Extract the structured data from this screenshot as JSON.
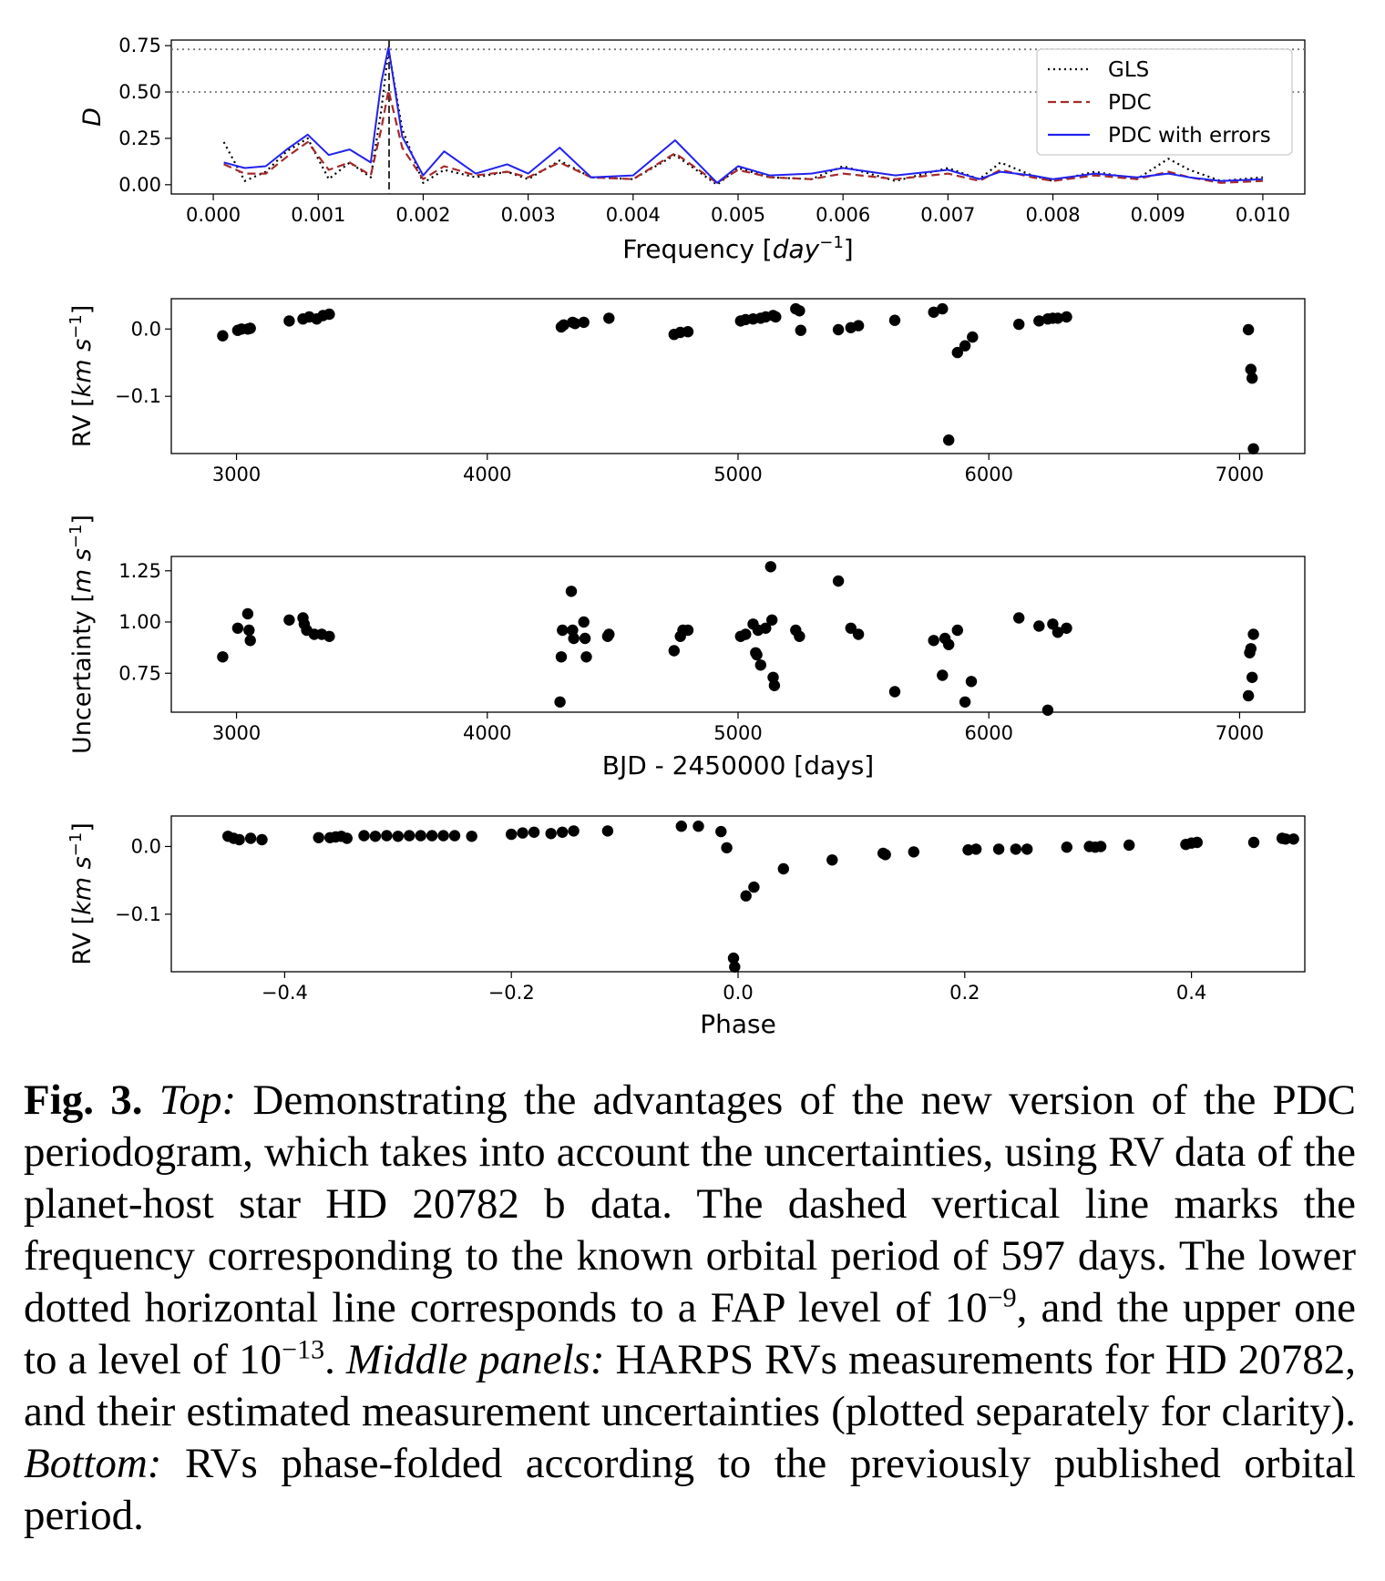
{
  "chart_data": [
    {
      "type": "line",
      "xlabel_pre": "Frequency [",
      "xlabel_var": "day",
      "xlabel_sup": "−1",
      "xlabel_post": "]",
      "ylabel": "D",
      "xlim": [
        -0.0004,
        0.0104
      ],
      "ylim": [
        -0.05,
        0.78
      ],
      "xticks": [
        "0.000",
        "0.001",
        "0.002",
        "0.003",
        "0.004",
        "0.005",
        "0.006",
        "0.007",
        "0.008",
        "0.009",
        "0.010"
      ],
      "xtick_values": [
        0.0,
        0.001,
        0.002,
        0.003,
        0.004,
        0.005,
        0.006,
        0.007,
        0.008,
        0.009,
        0.01
      ],
      "yticks": [
        "0.00",
        "0.25",
        "0.50",
        "0.75"
      ],
      "ytick_values": [
        0.0,
        0.25,
        0.5,
        0.75
      ],
      "hlines": [
        0.5,
        0.73
      ],
      "vline": 0.001675,
      "legend_position": "top-right",
      "colors": {
        "GLS": "#000000",
        "PDC": "#a52a2a",
        "PDC with errors": "#2222ee"
      },
      "series": [
        {
          "name": "GLS",
          "style": "dotted",
          "x": [
            0.0001,
            0.0003,
            0.0005,
            0.0007,
            0.0009,
            0.0011,
            0.0013,
            0.0015,
            0.0016,
            0.00167,
            0.0018,
            0.002,
            0.0022,
            0.0025,
            0.0028,
            0.003,
            0.0033,
            0.0036,
            0.004,
            0.0044,
            0.0048,
            0.005,
            0.0053,
            0.0057,
            0.006,
            0.0065,
            0.007,
            0.0073,
            0.0075,
            0.0078,
            0.008,
            0.0084,
            0.0088,
            0.0091,
            0.0093,
            0.0096,
            0.01
          ],
          "y": [
            0.23,
            0.02,
            0.07,
            0.18,
            0.25,
            0.03,
            0.12,
            0.04,
            0.4,
            0.73,
            0.3,
            0.01,
            0.08,
            0.04,
            0.07,
            0.03,
            0.13,
            0.04,
            0.03,
            0.16,
            0.0,
            0.09,
            0.04,
            0.03,
            0.1,
            0.02,
            0.09,
            0.03,
            0.12,
            0.05,
            0.02,
            0.07,
            0.03,
            0.14,
            0.08,
            0.02,
            0.04
          ]
        },
        {
          "name": "PDC",
          "style": "dashed",
          "x": [
            0.0001,
            0.0003,
            0.0005,
            0.0007,
            0.0009,
            0.0011,
            0.0013,
            0.0015,
            0.0016,
            0.00167,
            0.0018,
            0.002,
            0.0022,
            0.0025,
            0.0028,
            0.003,
            0.0033,
            0.0036,
            0.004,
            0.0044,
            0.0048,
            0.005,
            0.0053,
            0.0057,
            0.006,
            0.0065,
            0.007,
            0.0073,
            0.0075,
            0.0078,
            0.008,
            0.0084,
            0.0088,
            0.0091,
            0.0093,
            0.0096,
            0.01
          ],
          "y": [
            0.11,
            0.06,
            0.06,
            0.15,
            0.23,
            0.08,
            0.12,
            0.05,
            0.3,
            0.51,
            0.2,
            0.03,
            0.1,
            0.05,
            0.07,
            0.04,
            0.12,
            0.04,
            0.03,
            0.17,
            0.01,
            0.08,
            0.04,
            0.03,
            0.06,
            0.03,
            0.06,
            0.02,
            0.08,
            0.04,
            0.02,
            0.05,
            0.03,
            0.07,
            0.04,
            0.01,
            0.02
          ]
        },
        {
          "name": "PDC with errors",
          "style": "solid",
          "x": [
            0.0001,
            0.0003,
            0.0005,
            0.0007,
            0.0009,
            0.0011,
            0.0013,
            0.0015,
            0.0016,
            0.00167,
            0.0018,
            0.002,
            0.0022,
            0.0025,
            0.0028,
            0.003,
            0.0033,
            0.0036,
            0.004,
            0.0044,
            0.0048,
            0.005,
            0.0053,
            0.0057,
            0.006,
            0.0065,
            0.007,
            0.0073,
            0.0075,
            0.0078,
            0.008,
            0.0084,
            0.0088,
            0.0091,
            0.0093,
            0.0096,
            0.01
          ],
          "y": [
            0.12,
            0.09,
            0.1,
            0.19,
            0.27,
            0.16,
            0.19,
            0.12,
            0.55,
            0.74,
            0.26,
            0.05,
            0.18,
            0.06,
            0.11,
            0.06,
            0.2,
            0.04,
            0.05,
            0.24,
            0.01,
            0.1,
            0.05,
            0.06,
            0.09,
            0.05,
            0.08,
            0.03,
            0.07,
            0.05,
            0.03,
            0.06,
            0.04,
            0.06,
            0.04,
            0.02,
            0.03
          ]
        }
      ]
    },
    {
      "type": "scatter",
      "ylabel_pre": "RV [",
      "ylabel_var": "km s",
      "ylabel_sup": "−1",
      "ylabel_post": "]",
      "xlim": [
        2740,
        7260
      ],
      "ylim": [
        -0.185,
        0.045
      ],
      "xticks": [
        "3000",
        "4000",
        "5000",
        "6000",
        "7000"
      ],
      "xtick_values": [
        3000,
        4000,
        5000,
        6000,
        7000
      ],
      "yticks": [
        "0.0",
        "−0.1"
      ],
      "ytick_values": [
        0.0,
        -0.1
      ],
      "x": [
        2945,
        3005,
        3020,
        3045,
        3055,
        3210,
        3265,
        3290,
        3320,
        3345,
        3370,
        4295,
        4305,
        4340,
        4350,
        4385,
        4485,
        4745,
        4770,
        4800,
        5010,
        5030,
        5060,
        5090,
        5110,
        5140,
        5150,
        5230,
        5245,
        5250,
        5400,
        5450,
        5480,
        5625,
        5780,
        5815,
        5840,
        5875,
        5905,
        5935,
        6120,
        6200,
        6235,
        6255,
        6275,
        6310,
        7035,
        7045,
        7050,
        7055
      ],
      "y": [
        -0.01,
        -0.002,
        0.0,
        0.0,
        0.001,
        0.012,
        0.015,
        0.018,
        0.015,
        0.02,
        0.022,
        0.003,
        0.006,
        0.01,
        0.008,
        0.01,
        0.016,
        -0.008,
        -0.005,
        -0.004,
        0.012,
        0.014,
        0.015,
        0.016,
        0.018,
        0.02,
        0.018,
        0.03,
        0.027,
        -0.002,
        -0.001,
        0.002,
        0.005,
        0.013,
        0.025,
        0.03,
        -0.165,
        -0.035,
        -0.025,
        -0.012,
        0.007,
        0.012,
        0.015,
        0.016,
        0.016,
        0.018,
        -0.001,
        -0.06,
        -0.073,
        -0.178
      ]
    },
    {
      "type": "scatter",
      "ylabel_pre": "Uncertainty [",
      "ylabel_var": "m s",
      "ylabel_sup": "−1",
      "ylabel_post": "]",
      "xlabel": "BJD - 2450000 [days]",
      "xlim": [
        2740,
        7260
      ],
      "ylim": [
        0.56,
        1.32
      ],
      "xticks": [
        "3000",
        "4000",
        "5000",
        "6000",
        "7000"
      ],
      "xtick_values": [
        3000,
        4000,
        5000,
        6000,
        7000
      ],
      "yticks": [
        "1.25",
        "1.00",
        "0.75"
      ],
      "ytick_values": [
        1.25,
        1.0,
        0.75
      ],
      "x": [
        2945,
        3005,
        3045,
        3055,
        3050,
        3210,
        3265,
        3270,
        3280,
        3310,
        3340,
        3370,
        4295,
        4290,
        4300,
        4335,
        4340,
        4345,
        4385,
        4390,
        4395,
        4480,
        4485,
        4745,
        4770,
        4780,
        4800,
        5010,
        5030,
        5060,
        5070,
        5075,
        5080,
        5090,
        5110,
        5130,
        5135,
        5140,
        5145,
        5230,
        5245,
        5400,
        5450,
        5480,
        5625,
        5780,
        5815,
        5825,
        5840,
        5875,
        5905,
        5930,
        6120,
        6200,
        6235,
        6255,
        6275,
        6310,
        7035,
        7040,
        7045,
        7050,
        7055
      ],
      "y": [
        0.83,
        0.97,
        1.04,
        0.91,
        0.96,
        1.01,
        1.02,
        0.99,
        0.96,
        0.94,
        0.94,
        0.93,
        0.83,
        0.61,
        0.96,
        1.15,
        0.96,
        0.92,
        1.0,
        0.92,
        0.83,
        0.93,
        0.94,
        0.86,
        0.93,
        0.96,
        0.96,
        0.93,
        0.94,
        0.99,
        0.85,
        0.84,
        0.96,
        0.79,
        0.97,
        1.27,
        1.01,
        0.73,
        0.69,
        0.96,
        0.93,
        1.2,
        0.97,
        0.94,
        0.66,
        0.91,
        0.74,
        0.92,
        0.89,
        0.96,
        0.61,
        0.71,
        1.02,
        0.98,
        0.57,
        0.99,
        0.95,
        0.97,
        0.64,
        0.85,
        0.87,
        0.73,
        0.94
      ]
    },
    {
      "type": "scatter",
      "ylabel_pre": "RV [",
      "ylabel_var": "km s",
      "ylabel_sup": "−1",
      "ylabel_post": "]",
      "xlabel": "Phase",
      "xlim": [
        -0.5,
        0.5
      ],
      "ylim": [
        -0.185,
        0.045
      ],
      "xticks": [
        "−0.4",
        "−0.2",
        "0.0",
        "0.2",
        "0.4"
      ],
      "xtick_values": [
        -0.4,
        -0.2,
        0.0,
        0.2,
        0.4
      ],
      "yticks": [
        "0.0",
        "−0.1"
      ],
      "ytick_values": [
        0.0,
        -0.1
      ],
      "x": [
        -0.45,
        -0.445,
        -0.44,
        -0.43,
        -0.42,
        -0.37,
        -0.36,
        -0.355,
        -0.35,
        -0.345,
        -0.33,
        -0.32,
        -0.31,
        -0.3,
        -0.29,
        -0.28,
        -0.27,
        -0.26,
        -0.25,
        -0.235,
        -0.2,
        -0.19,
        -0.18,
        -0.165,
        -0.155,
        -0.145,
        -0.115,
        -0.05,
        -0.035,
        -0.015,
        -0.01,
        -0.004,
        -0.003,
        0.007,
        0.014,
        0.04,
        0.083,
        0.128,
        0.13,
        0.155,
        0.203,
        0.21,
        0.23,
        0.245,
        0.255,
        0.29,
        0.31,
        0.315,
        0.32,
        0.345,
        0.395,
        0.4,
        0.405,
        0.455,
        0.48,
        0.483,
        0.49
      ],
      "y": [
        0.015,
        0.012,
        0.01,
        0.012,
        0.01,
        0.013,
        0.013,
        0.014,
        0.015,
        0.012,
        0.016,
        0.015,
        0.016,
        0.015,
        0.016,
        0.016,
        0.016,
        0.016,
        0.016,
        0.015,
        0.018,
        0.02,
        0.021,
        0.019,
        0.021,
        0.023,
        0.023,
        0.03,
        0.03,
        0.022,
        -0.002,
        -0.165,
        -0.178,
        -0.073,
        -0.06,
        -0.033,
        -0.02,
        -0.01,
        -0.012,
        -0.008,
        -0.005,
        -0.004,
        -0.004,
        -0.004,
        -0.004,
        -0.001,
        0.0,
        -0.001,
        0.0,
        0.002,
        0.003,
        0.005,
        0.006,
        0.006,
        0.012,
        0.011,
        0.011
      ]
    }
  ],
  "caption": {
    "fig_label": "Fig. 3.",
    "top_label": "Top:",
    "text1": " Demonstrating the advantages of the new version of the PDC periodogram, which takes into account the uncertainties, using RV data of the planet-host star HD 20782 b data. The dashed vertical line marks the frequency corresponding to the known orbital period of 597 days. The lower dotted horizontal line corresponds to a FAP level of 10",
    "sup1": "−9",
    "text2": ", and the upper one to a level of 10",
    "sup2": "−13",
    "text3": ". ",
    "middle_label": "Middle panels:",
    "text4": " HARPS RVs measurements for HD 20782, and their estimated measurement uncertainties (plotted separately for clarity). ",
    "bottom_label": "Bottom:",
    "text5": " RVs phase-folded according to the previously published orbital period."
  }
}
